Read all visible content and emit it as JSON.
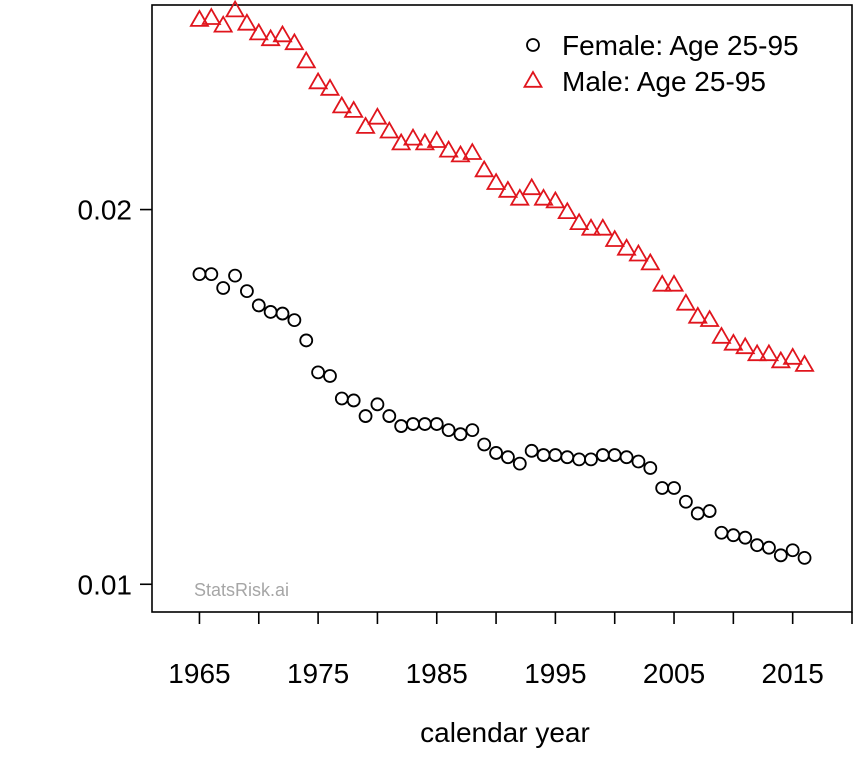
{
  "chart_data": {
    "type": "scatter",
    "title": "",
    "xlabel": "calendar year",
    "ylabel": "",
    "xlim": [
      1961,
      2020
    ],
    "ylim": [
      0.0095,
      0.0292
    ],
    "x_ticks": [
      1965,
      1970,
      1975,
      1980,
      1985,
      1990,
      1995,
      2000,
      2005,
      2010,
      2015,
      2020
    ],
    "x_tick_labels": [
      {
        "value": 1965,
        "label": "1965"
      },
      {
        "value": 1975,
        "label": "1975"
      },
      {
        "value": 1985,
        "label": "1985"
      },
      {
        "value": 1995,
        "label": "1995"
      },
      {
        "value": 2005,
        "label": "2005"
      },
      {
        "value": 2015,
        "label": "2015"
      }
    ],
    "y_ticks": [
      {
        "value": 0.01,
        "label": "0.01"
      },
      {
        "value": 0.02,
        "label": "0.02"
      }
    ],
    "log_scale_y": true,
    "grid": false,
    "legend_position": "top-right",
    "watermark": "StatsRisk.ai",
    "x": [
      1965,
      1966,
      1967,
      1968,
      1969,
      1970,
      1971,
      1972,
      1973,
      1974,
      1975,
      1976,
      1977,
      1978,
      1979,
      1980,
      1981,
      1982,
      1983,
      1984,
      1985,
      1986,
      1987,
      1988,
      1989,
      1990,
      1991,
      1992,
      1993,
      1994,
      1995,
      1996,
      1997,
      1998,
      1999,
      2000,
      2001,
      2002,
      2003,
      2004,
      2005,
      2006,
      2007,
      2008,
      2009,
      2010,
      2011,
      2012,
      2013,
      2014,
      2015,
      2016
    ],
    "series": [
      {
        "name": "Female: Age 25-95",
        "marker": "circle",
        "color": "#000000",
        "values": [
          0.01775,
          0.01775,
          0.0173,
          0.0177,
          0.0172,
          0.01675,
          0.01655,
          0.0165,
          0.0163,
          0.0157,
          0.0148,
          0.0147,
          0.0141,
          0.01405,
          0.01365,
          0.01395,
          0.01365,
          0.0134,
          0.01345,
          0.01345,
          0.01345,
          0.0133,
          0.0132,
          0.0133,
          0.01295,
          0.01275,
          0.01265,
          0.0125,
          0.0128,
          0.0127,
          0.0127,
          0.01265,
          0.0126,
          0.0126,
          0.0127,
          0.0127,
          0.01265,
          0.01255,
          0.0124,
          0.01195,
          0.01195,
          0.01165,
          0.0114,
          0.01145,
          0.011,
          0.01095,
          0.0109,
          0.01075,
          0.0107,
          0.01055,
          0.01065,
          0.0105
        ]
      },
      {
        "name": "Male: Age 25-95",
        "marker": "triangle",
        "color": "#e0151d",
        "values": [
          0.0284,
          0.0285,
          0.0281,
          0.0289,
          0.0282,
          0.0277,
          0.0274,
          0.0276,
          0.0272,
          0.0263,
          0.0253,
          0.025,
          0.0242,
          0.024,
          0.0233,
          0.0237,
          0.0231,
          0.0226,
          0.0228,
          0.0226,
          0.0227,
          0.0223,
          0.0221,
          0.0222,
          0.0215,
          0.021,
          0.0207,
          0.0204,
          0.0208,
          0.0204,
          0.0203,
          0.0199,
          0.0195,
          0.0193,
          0.0193,
          0.0189,
          0.0186,
          0.0184,
          0.0181,
          0.0174,
          0.0174,
          0.0168,
          0.0164,
          0.0163,
          0.0158,
          0.0156,
          0.0155,
          0.0153,
          0.0153,
          0.0151,
          0.0152,
          0.015
        ]
      }
    ]
  }
}
